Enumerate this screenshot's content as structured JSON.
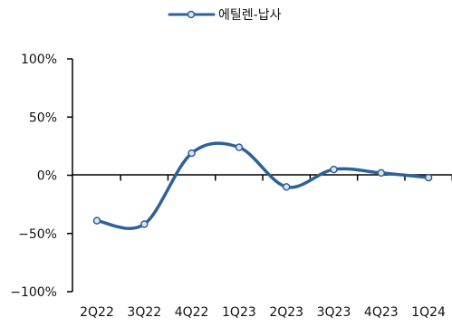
{
  "chart_data": {
    "type": "line",
    "title": "",
    "xlabel": "",
    "ylabel": "",
    "categories": [
      "2Q22",
      "3Q22",
      "4Q22",
      "1Q23",
      "2Q23",
      "3Q23",
      "4Q23",
      "1Q24"
    ],
    "series": [
      {
        "name": "에틸렌-납사",
        "values": [
          -39,
          -42,
          19,
          24,
          -10,
          5,
          2,
          -2
        ],
        "color": "#2d6299"
      }
    ],
    "y_ticks": [
      100,
      50,
      0,
      -50,
      -100
    ],
    "y_tick_labels": [
      "100%",
      "50%",
      "0%",
      "−50%",
      "−100%"
    ],
    "ylim": [
      -100,
      100
    ],
    "grid": false,
    "legend": "top-center",
    "smooth": true,
    "marker_fill": "#dbe4f0"
  }
}
